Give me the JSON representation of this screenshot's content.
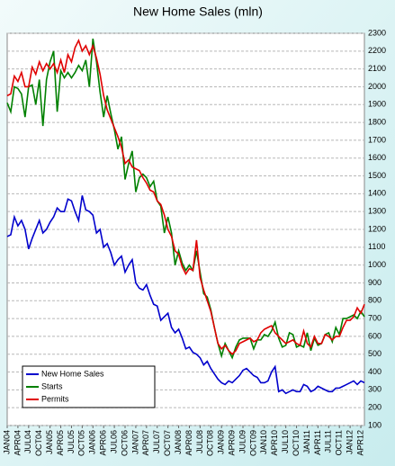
{
  "chart_data": {
    "type": "line",
    "title": "New Home Sales (mln)",
    "categories": [
      "JAN04",
      null,
      null,
      "APR04",
      null,
      null,
      "JUL04",
      null,
      null,
      "OCT04",
      null,
      null,
      "JAN05",
      null,
      null,
      "APR05",
      null,
      null,
      "JUL05",
      null,
      null,
      "OCT05",
      null,
      null,
      "JAN06",
      null,
      null,
      "APR06",
      null,
      null,
      "JUL06",
      null,
      null,
      "OCT06",
      null,
      null,
      "JAN07",
      null,
      null,
      "APR07",
      null,
      null,
      "JUL07",
      null,
      null,
      "OCT07",
      null,
      null,
      "JAN08",
      null,
      null,
      "APR08",
      null,
      null,
      "JUL08",
      null,
      null,
      "OCT08",
      null,
      null,
      "JAN09",
      null,
      null,
      "APR09",
      null,
      null,
      "JUL09",
      null,
      null,
      "OCT09",
      null,
      null,
      "JAN10",
      null,
      null,
      "APR10",
      null,
      null,
      "JUL10",
      null,
      null,
      "OCT10",
      null,
      null,
      "JAN11",
      null,
      null,
      "APR11",
      null,
      null,
      "JUL11",
      null,
      null,
      "OCT11",
      null,
      null,
      "JAN12",
      null,
      null,
      "APR12",
      null
    ],
    "series": [
      {
        "name": "New Home Sales",
        "color": "#0000cc",
        "values": [
          1160,
          1170,
          1270,
          1220,
          1250,
          1200,
          1090,
          1150,
          1200,
          1250,
          1180,
          1200,
          1240,
          1270,
          1320,
          1300,
          1300,
          1370,
          1360,
          1300,
          1250,
          1390,
          1310,
          1300,
          1280,
          1180,
          1200,
          1100,
          1120,
          1070,
          1000,
          1030,
          1050,
          960,
          1000,
          1030,
          900,
          870,
          860,
          890,
          830,
          780,
          770,
          690,
          710,
          730,
          650,
          620,
          640,
          590,
          530,
          540,
          510,
          500,
          480,
          440,
          460,
          420,
          390,
          360,
          340,
          330,
          350,
          340,
          360,
          380,
          410,
          420,
          400,
          380,
          370,
          340,
          340,
          350,
          400,
          430,
          290,
          300,
          280,
          290,
          300,
          290,
          290,
          330,
          320,
          290,
          300,
          320,
          310,
          300,
          290,
          290,
          310,
          310,
          320,
          330,
          340,
          350,
          330,
          350,
          340
        ]
      },
      {
        "name": "Starts",
        "color": "#008000",
        "values": [
          1910,
          1860,
          2000,
          1990,
          1960,
          1830,
          2000,
          2010,
          1900,
          2040,
          1780,
          2040,
          2140,
          2200,
          1860,
          2090,
          2050,
          2080,
          2050,
          2080,
          2120,
          2090,
          2150,
          2000,
          2270,
          2140,
          1970,
          1830,
          1950,
          1850,
          1760,
          1650,
          1720,
          1480,
          1570,
          1640,
          1410,
          1490,
          1510,
          1490,
          1440,
          1470,
          1360,
          1330,
          1180,
          1270,
          1180,
          1000,
          1080,
          1010,
          970,
          1000,
          970,
          1080,
          960,
          840,
          820,
          750,
          650,
          560,
          490,
          560,
          520,
          480,
          540,
          580,
          590,
          590,
          590,
          530,
          580,
          580,
          610,
          600,
          630,
          680,
          590,
          540,
          550,
          620,
          610,
          540,
          550,
          540,
          620,
          520,
          590,
          550,
          560,
          610,
          620,
          570,
          650,
          610,
          700,
          700,
          710,
          720,
          700,
          740,
          710
        ]
      },
      {
        "name": "Permits",
        "color": "#e00000",
        "values": [
          1950,
          1960,
          2060,
          2030,
          2080,
          2000,
          2000,
          2110,
          2070,
          2140,
          2090,
          2130,
          2100,
          2130,
          2080,
          2150,
          2080,
          2180,
          2140,
          2220,
          2260,
          2200,
          2230,
          2180,
          2230,
          2160,
          2070,
          1950,
          1870,
          1820,
          1770,
          1720,
          1660,
          1570,
          1590,
          1550,
          1540,
          1530,
          1490,
          1460,
          1420,
          1410,
          1360,
          1340,
          1280,
          1200,
          1160,
          1080,
          1060,
          990,
          950,
          980,
          970,
          1140,
          930,
          860,
          800,
          740,
          650,
          560,
          530,
          550,
          520,
          500,
          520,
          560,
          570,
          580,
          590,
          570,
          580,
          620,
          640,
          650,
          660,
          620,
          600,
          580,
          560,
          570,
          580,
          560,
          550,
          630,
          560,
          540,
          600,
          560,
          560,
          610,
          600,
          580,
          600,
          600,
          650,
          690,
          690,
          710,
          760,
          730,
          780
        ]
      }
    ],
    "ylim": [
      100,
      2300
    ],
    "yticks": [
      100,
      200,
      300,
      400,
      500,
      600,
      700,
      800,
      900,
      1000,
      1100,
      1200,
      1300,
      1400,
      1500,
      1600,
      1700,
      1800,
      1900,
      2000,
      2100,
      2200,
      2300
    ],
    "grid": true,
    "legend": "lower left"
  }
}
